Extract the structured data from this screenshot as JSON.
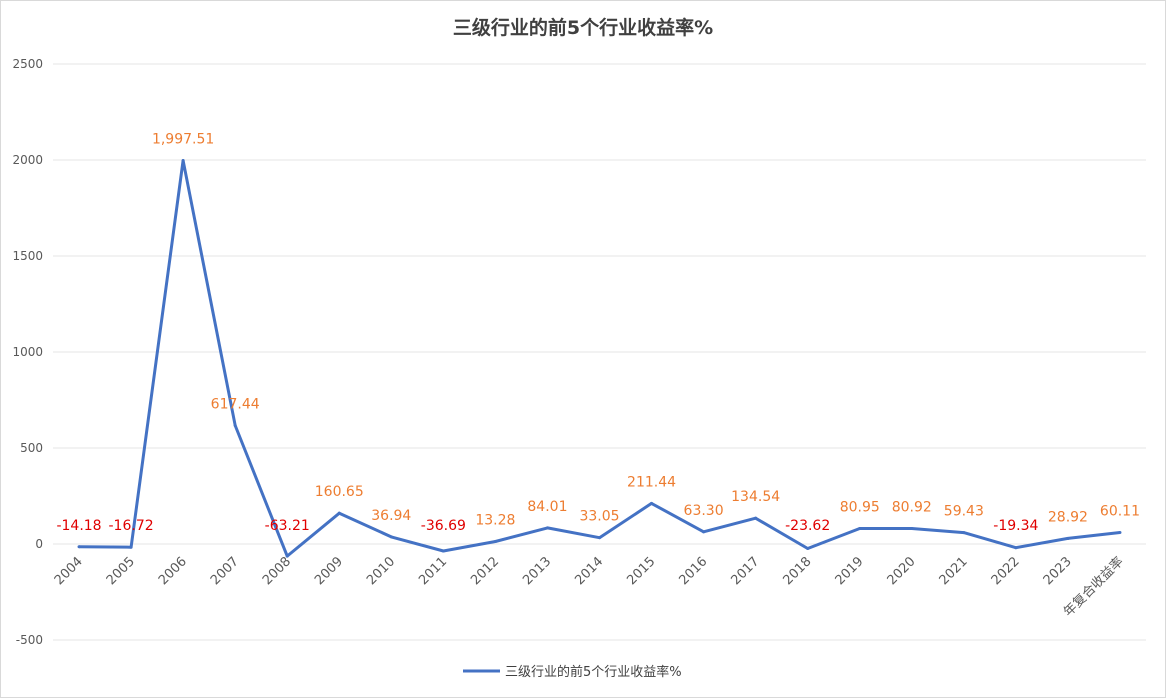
{
  "chart_data": {
    "type": "line",
    "title": "三级行业的前5个行业收益率%",
    "categories": [
      "2004",
      "2005",
      "2006",
      "2007",
      "2008",
      "2009",
      "2010",
      "2011",
      "2012",
      "2013",
      "2014",
      "2015",
      "2016",
      "2017",
      "2018",
      "2019",
      "2020",
      "2021",
      "2022",
      "2023",
      "年复合收益率"
    ],
    "series": [
      {
        "name": "三级行业的前5个行业收益率%",
        "values": [
          -14.18,
          -16.72,
          1997.51,
          617.44,
          -63.21,
          160.65,
          36.94,
          -36.69,
          13.28,
          84.01,
          33.05,
          211.44,
          63.3,
          134.54,
          -23.62,
          80.95,
          80.92,
          59.43,
          -19.34,
          28.92,
          60.11
        ],
        "labels": [
          "-14.18",
          "-16.72",
          "1,997.51",
          "617.44",
          "-63.21",
          "160.65",
          "36.94",
          "-36.69",
          "13.28",
          "84.01",
          "33.05",
          "211.44",
          "63.30",
          "134.54",
          "-23.62",
          "80.95",
          "80.92",
          "59.43",
          "-19.34",
          "28.92",
          "60.11"
        ],
        "color": "#4472c4"
      }
    ],
    "ylim": [
      -500,
      2500
    ],
    "yticks": [
      2500,
      2000,
      1500,
      1000,
      500,
      0,
      -500
    ],
    "grid": true,
    "legend_position": "bottom",
    "positive_label_color": "#ed7d31",
    "negative_label_color": "#e00000"
  }
}
